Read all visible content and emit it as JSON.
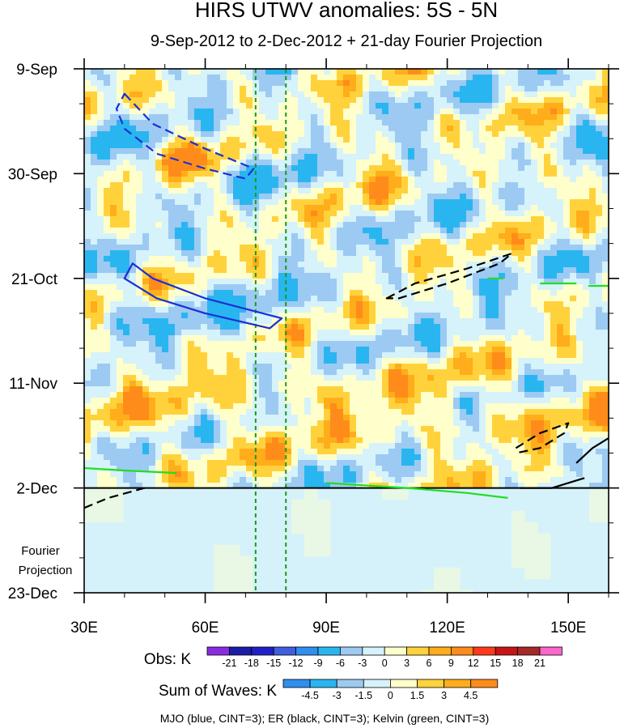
{
  "chart_data": {
    "type": "heatmap",
    "title": "HIRS UTWV anomalies: 5S - 5N",
    "subtitle": "9-Sep-2012 to 2-Dec-2012 + 21-day Fourier Projection",
    "x_axis": {
      "range": [
        30,
        160
      ],
      "units": "degrees East longitude",
      "ticks": [
        30,
        60,
        90,
        120,
        150
      ],
      "tick_labels": [
        "30E",
        "60E",
        "90E",
        "120E",
        "150E"
      ]
    },
    "y_axis": {
      "range_days": [
        0,
        105
      ],
      "day_zero": "9-Sep-2012",
      "ticks": [
        0,
        21,
        42,
        63,
        84,
        105
      ],
      "tick_labels": [
        "9-Sep",
        "30-Sep",
        "21-Oct",
        "11-Nov",
        "2-Dec",
        "23-Dec"
      ],
      "projection_start_day": 84,
      "projection_label": [
        "Fourier",
        "Projection"
      ]
    },
    "reference_lines": [
      {
        "type": "vertical_dashed",
        "x": 72.5,
        "color": "#1a9a1a"
      },
      {
        "type": "vertical_dashed",
        "x": 80,
        "color": "#1a9a1a"
      },
      {
        "type": "horizontal_solid",
        "y_day": 84,
        "color": "#000000"
      }
    ],
    "obs_colorbar": {
      "label": "Obs: K",
      "levels": [
        "-21",
        "-18",
        "-15",
        "-12",
        "-9",
        "-6",
        "-3",
        "0",
        "3",
        "6",
        "9",
        "12",
        "15",
        "18",
        "21"
      ],
      "colors": [
        "#8a2be2",
        "#1c1ca8",
        "#2020c8",
        "#3f5ee0",
        "#2f8ef0",
        "#29b6f0",
        "#9ccaf2",
        "#d6f2fa",
        "#ffffcc",
        "#ffd23c",
        "#ffad1a",
        "#ff8c1a",
        "#ff3a1a",
        "#c71414",
        "#a62828",
        "#ff66cc"
      ]
    },
    "waves_colorbar": {
      "label": "Sum of Waves: K",
      "levels": [
        "-4.5",
        "-3",
        "-1.5",
        "0",
        "1.5",
        "3",
        "4.5"
      ],
      "colors": [
        "#2f8ef0",
        "#29b6f0",
        "#9ccaf2",
        "#d6f2fa",
        "#ffffcc",
        "#ffd23c",
        "#ffad1a",
        "#ff8c1a"
      ]
    },
    "contour_legend": "MJO (blue, CINT=3); ER (black, CINT=3); Kelvin (green, CINT=3)",
    "wave_contours": [
      {
        "wave": "MJO",
        "color": "#1a2fd6",
        "style": "dashed",
        "sign": "positive",
        "points": [
          [
            40,
            5
          ],
          [
            47,
            11
          ],
          [
            60,
            16
          ],
          [
            72,
            20
          ],
          [
            70,
            22
          ],
          [
            60,
            20
          ],
          [
            48,
            17
          ],
          [
            40,
            12
          ],
          [
            38,
            8
          ]
        ]
      },
      {
        "wave": "MJO",
        "color": "#1a2fd6",
        "style": "solid",
        "sign": "negative",
        "points": [
          [
            42,
            39
          ],
          [
            47,
            42
          ],
          [
            60,
            46
          ],
          [
            79,
            50
          ],
          [
            76,
            52
          ],
          [
            60,
            49
          ],
          [
            48,
            46
          ],
          [
            40,
            42
          ]
        ]
      },
      {
        "wave": "ER",
        "color": "#000000",
        "style": "dashed",
        "sign": "positive",
        "points": [
          [
            105,
            46
          ],
          [
            112,
            43
          ],
          [
            125,
            40
          ],
          [
            136,
            37
          ],
          [
            133,
            39
          ],
          [
            120,
            43
          ],
          [
            108,
            46
          ]
        ]
      },
      {
        "wave": "ER",
        "color": "#000000",
        "style": "dashed",
        "sign": "positive",
        "points": [
          [
            137,
            76
          ],
          [
            143,
            73
          ],
          [
            150,
            71
          ],
          [
            149,
            73
          ],
          [
            143,
            76
          ],
          [
            137,
            77
          ]
        ]
      },
      {
        "wave": "ER",
        "color": "#000000",
        "style": "dashed",
        "sign": "positive",
        "points": [
          [
            30,
            88
          ],
          [
            36,
            86
          ],
          [
            45,
            84
          ]
        ]
      },
      {
        "wave": "ER",
        "color": "#000000",
        "style": "solid",
        "sign": "negative",
        "points": [
          [
            152,
            79
          ],
          [
            156,
            76
          ],
          [
            160,
            74
          ]
        ]
      },
      {
        "wave": "ER",
        "color": "#000000",
        "style": "solid",
        "sign": "negative",
        "points": [
          [
            138,
            84
          ],
          [
            146,
            84
          ],
          [
            154,
            82
          ]
        ]
      },
      {
        "wave": "Kelvin",
        "color": "#22dd22",
        "style": "solid",
        "sign": "positive",
        "points": [
          [
            30,
            80
          ],
          [
            40,
            80.5
          ],
          [
            53,
            81
          ]
        ]
      },
      {
        "wave": "Kelvin",
        "color": "#22dd22",
        "style": "solid",
        "sign": "positive",
        "points": [
          [
            90,
            83
          ],
          [
            110,
            84
          ],
          [
            125,
            85
          ],
          [
            135,
            86
          ]
        ]
      },
      {
        "wave": "Kelvin",
        "color": "#22dd22",
        "style": "solid",
        "sign": "positive",
        "points": [
          [
            143,
            43
          ],
          [
            152,
            43
          ]
        ]
      },
      {
        "wave": "Kelvin",
        "color": "#22dd22",
        "style": "solid",
        "sign": "positive",
        "points": [
          [
            130,
            42
          ],
          [
            134,
            42
          ]
        ]
      },
      {
        "wave": "Kelvin",
        "color": "#22dd22",
        "style": "solid",
        "sign": "positive",
        "points": [
          [
            155,
            43.5
          ],
          [
            160,
            43.5
          ]
        ]
      }
    ]
  }
}
